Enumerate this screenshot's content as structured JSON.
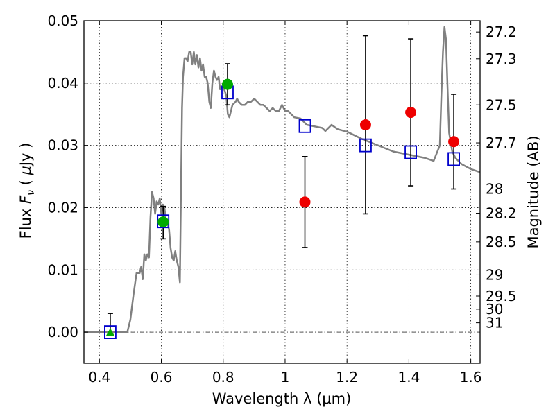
{
  "chart_data": {
    "type": "scatter",
    "title": "",
    "xlabel": "Wavelength  λ (μm)",
    "ylabel": "Flux  F_ν  ( μJy )",
    "ylabel_parts": [
      "Flux  ",
      "F",
      "ν",
      "  ( ",
      "μ",
      "Jy )"
    ],
    "y2label": "Magnitude (AB)",
    "xlim": [
      0.35,
      1.63
    ],
    "ylim": [
      -0.005,
      0.05
    ],
    "grid": true,
    "legend": "none",
    "x_ticks": [
      0.4,
      0.6,
      0.8,
      1,
      1.2,
      1.4,
      1.6
    ],
    "x_tick_labels": [
      "0.4",
      "0.6",
      "0.8",
      "1",
      "1.2",
      "1.4",
      "1.6"
    ],
    "y_ticks": [
      0.0,
      0.01,
      0.02,
      0.03,
      0.04,
      0.05
    ],
    "y_tick_labels": [
      "0.00",
      "0.01",
      "0.02",
      "0.03",
      "0.04",
      "0.05"
    ],
    "y2_ticks": [
      {
        "label": "27.2",
        "flux": 0.0482
      },
      {
        "label": "27.3",
        "flux": 0.0439
      },
      {
        "label": "27.5",
        "flux": 0.0365
      },
      {
        "label": "27.7",
        "flux": 0.0304
      },
      {
        "label": "28",
        "flux": 0.023
      },
      {
        "label": "28.2",
        "flux": 0.0191
      },
      {
        "label": "28.5",
        "flux": 0.0145
      },
      {
        "label": "29",
        "flux": 0.0092
      },
      {
        "label": "29.5",
        "flux": 0.0058
      },
      {
        "label": "30",
        "flux": 0.0037
      },
      {
        "label": "31",
        "flux": 0.0015
      }
    ],
    "colors": {
      "model": "#808080",
      "model_bands": "#0000cc",
      "detections": "#00aa00",
      "upper_points": "#ee0000",
      "errorbar": "#000000",
      "zero_line": "#555555",
      "grid": "#000000"
    },
    "model_spectrum": {
      "name": "",
      "x": [
        0.35,
        0.48,
        0.49,
        0.5,
        0.51,
        0.52,
        0.53,
        0.535,
        0.54,
        0.545,
        0.55,
        0.555,
        0.56,
        0.565,
        0.57,
        0.575,
        0.58,
        0.585,
        0.59,
        0.595,
        0.6,
        0.605,
        0.61,
        0.615,
        0.62,
        0.625,
        0.63,
        0.635,
        0.64,
        0.645,
        0.65,
        0.655,
        0.66,
        0.663,
        0.667,
        0.67,
        0.675,
        0.68,
        0.685,
        0.69,
        0.695,
        0.7,
        0.705,
        0.71,
        0.715,
        0.72,
        0.725,
        0.73,
        0.735,
        0.74,
        0.745,
        0.75,
        0.755,
        0.76,
        0.765,
        0.77,
        0.775,
        0.78,
        0.785,
        0.79,
        0.8,
        0.81,
        0.815,
        0.82,
        0.83,
        0.84,
        0.845,
        0.85,
        0.86,
        0.87,
        0.88,
        0.89,
        0.9,
        0.91,
        0.92,
        0.93,
        0.94,
        0.95,
        0.96,
        0.97,
        0.98,
        0.99,
        1.0,
        1.01,
        1.02,
        1.03,
        1.05,
        1.07,
        1.1,
        1.12,
        1.13,
        1.15,
        1.17,
        1.2,
        1.25,
        1.3,
        1.35,
        1.4,
        1.45,
        1.48,
        1.5,
        1.505,
        1.51,
        1.515,
        1.52,
        1.525,
        1.53,
        1.54,
        1.55,
        1.57,
        1.6,
        1.63
      ],
      "y": [
        0.0,
        0.0,
        0.0,
        0.002,
        0.006,
        0.0095,
        0.0095,
        0.0105,
        0.0085,
        0.0125,
        0.0115,
        0.0125,
        0.012,
        0.0185,
        0.0225,
        0.0215,
        0.019,
        0.021,
        0.0205,
        0.0215,
        0.019,
        0.0205,
        0.02,
        0.018,
        0.0175,
        0.0165,
        0.0135,
        0.012,
        0.0115,
        0.013,
        0.0115,
        0.0105,
        0.008,
        0.02,
        0.036,
        0.041,
        0.044,
        0.044,
        0.0435,
        0.045,
        0.045,
        0.043,
        0.045,
        0.043,
        0.0445,
        0.0425,
        0.044,
        0.042,
        0.043,
        0.041,
        0.041,
        0.04,
        0.037,
        0.036,
        0.04,
        0.042,
        0.041,
        0.0405,
        0.041,
        0.039,
        0.0395,
        0.038,
        0.035,
        0.0345,
        0.0365,
        0.037,
        0.0375,
        0.037,
        0.0365,
        0.0365,
        0.037,
        0.037,
        0.0375,
        0.037,
        0.0365,
        0.0365,
        0.036,
        0.0355,
        0.036,
        0.0355,
        0.0355,
        0.0365,
        0.0355,
        0.0355,
        0.035,
        0.0345,
        0.0343,
        0.0333,
        0.033,
        0.0328,
        0.0323,
        0.0333,
        0.0326,
        0.0322,
        0.031,
        0.03,
        0.029,
        0.0285,
        0.028,
        0.0275,
        0.03,
        0.038,
        0.045,
        0.049,
        0.047,
        0.039,
        0.032,
        0.029,
        0.028,
        0.027,
        0.0262,
        0.0257
      ]
    },
    "model_band_points": {
      "name": "",
      "x": [
        0.435,
        0.606,
        0.814,
        1.064,
        1.26,
        1.406,
        1.545
      ],
      "y": [
        0.0,
        0.0178,
        0.0385,
        0.0331,
        0.03,
        0.0289,
        0.0278
      ]
    },
    "detections": {
      "name": "",
      "points": [
        {
          "x": 0.435,
          "y": 0.0,
          "err_low": 0.0,
          "err_high": 0.003,
          "marker": "triangle"
        },
        {
          "x": 0.606,
          "y": 0.0177,
          "err_low": 0.0027,
          "err_high": 0.0025,
          "marker": "circle"
        },
        {
          "x": 0.814,
          "y": 0.0398,
          "err_low": 0.0033,
          "err_high": 0.0033,
          "marker": "circle"
        }
      ]
    },
    "red_points": {
      "name": "",
      "points": [
        {
          "x": 1.064,
          "y": 0.0209,
          "err_low": 0.0073,
          "err_high": 0.0073
        },
        {
          "x": 1.26,
          "y": 0.0333,
          "err_low": 0.0143,
          "err_high": 0.0143
        },
        {
          "x": 1.406,
          "y": 0.0353,
          "err_low": 0.0118,
          "err_high": 0.0118
        },
        {
          "x": 1.545,
          "y": 0.0306,
          "err_low": 0.0076,
          "err_high": 0.0076
        }
      ]
    }
  }
}
